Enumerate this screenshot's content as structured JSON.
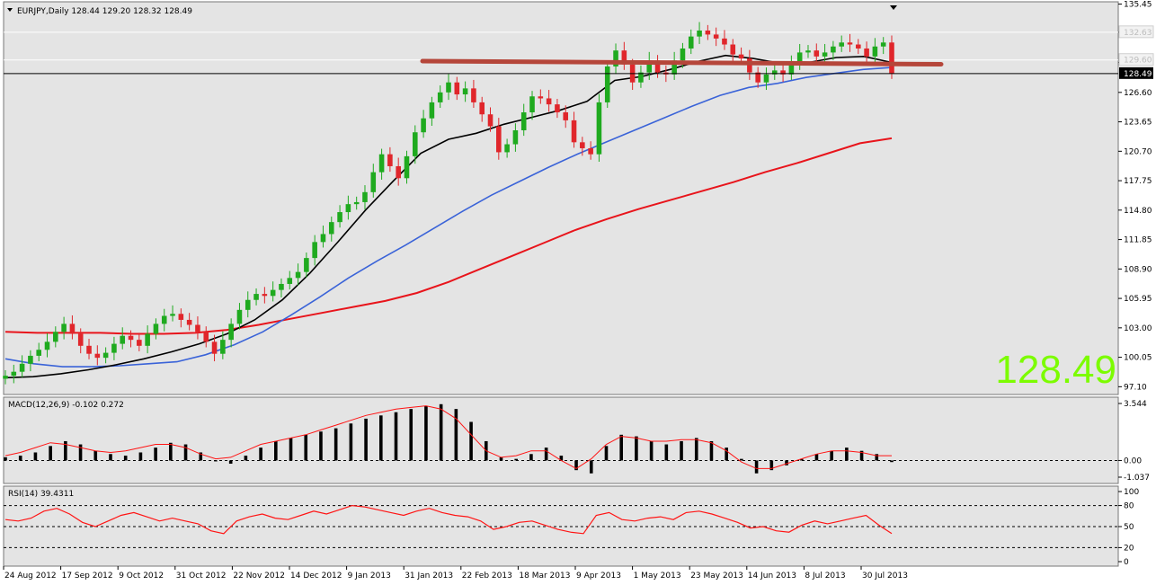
{
  "header": {
    "symbol": "EURJPY,Daily",
    "ohlc": "128.44 129.20 128.32 128.49"
  },
  "big_price": "128.49",
  "price_marker": "128.49",
  "price_tag_2": "132.63",
  "price_tag_3": "129.60",
  "macd": {
    "label": "MACD(12,26,9) -0.102 0.272",
    "ticks": [
      "3.544",
      "0.00",
      "-1.037"
    ]
  },
  "rsi": {
    "label": "RSI(14) 39.4311",
    "ticks": [
      "100",
      "80",
      "50",
      "20",
      "0"
    ]
  },
  "colors": {
    "background": "#e4e4e4",
    "up_candle": "#1faa1f",
    "down_candle": "#e0262b",
    "ma_fast": "#000000",
    "ma_mid": "#3a63d8",
    "ma_slow": "#e8141b",
    "resistance": "#b5463a",
    "macd_signal": "#ff1414",
    "rsi_line": "#ff1414",
    "big_price": "#7cfc00"
  },
  "chart_data": [
    {
      "type": "candlestick",
      "price_axis_ticks": [
        "135.45",
        "132.63",
        "129.60",
        "126.60",
        "123.65",
        "120.70",
        "117.75",
        "114.80",
        "111.85",
        "108.90",
        "105.95",
        "103.00",
        "100.05",
        "97.10"
      ],
      "x_tick_labels": [
        "24 Aug 2012",
        "17 Sep 2012",
        "9 Oct 2012",
        "31 Oct 2012",
        "22 Nov 2012",
        "14 Dec 2012",
        "9 Jan 2013",
        "31 Jan 2013",
        "22 Feb 2013",
        "18 Mar 2013",
        "9 Apr 2013",
        "1 May 2013",
        "23 May 2013",
        "14 Jun 2013",
        "8 Jul 2013",
        "30 Jul 2013"
      ],
      "ylim": [
        96.5,
        135.5
      ],
      "closes": [
        98.2,
        98.6,
        99.4,
        100.2,
        100.8,
        101.6,
        102.6,
        103.4,
        102.4,
        101.2,
        100.4,
        100.0,
        100.5,
        101.4,
        102.2,
        101.8,
        101.2,
        102.4,
        103.4,
        104.2,
        104.4,
        103.8,
        103.3,
        102.6,
        101.6,
        100.4,
        101.8,
        103.4,
        104.8,
        105.8,
        106.4,
        106.2,
        106.8,
        107.4,
        108.0,
        108.6,
        110.0,
        111.6,
        112.4,
        113.6,
        114.6,
        115.4,
        115.6,
        116.6,
        118.6,
        120.4,
        119.2,
        118.0,
        120.2,
        122.6,
        124.0,
        125.6,
        126.6,
        127.6,
        126.4,
        127.0,
        125.6,
        124.4,
        123.2,
        120.6,
        121.4,
        122.8,
        124.6,
        126.2,
        126.0,
        125.4,
        124.6,
        123.8,
        121.6,
        121.0,
        120.4,
        125.6,
        129.2,
        130.8,
        129.4,
        127.6,
        128.6,
        129.8,
        128.6,
        128.4,
        129.8,
        131.0,
        132.2,
        132.8,
        132.4,
        132.0,
        131.4,
        130.4,
        130.0,
        128.6,
        127.6,
        128.4,
        128.8,
        128.4,
        129.6,
        130.6,
        130.8,
        130.2,
        130.6,
        131.2,
        131.6,
        131.4,
        131.0,
        130.2,
        131.2,
        131.6,
        128.49
      ],
      "ma_fast": [
        98.0,
        98.1,
        98.4,
        98.8,
        99.3,
        99.9,
        100.6,
        101.4,
        102.4,
        103.8,
        105.8,
        108.5,
        111.6,
        114.8,
        117.7,
        120.5,
        121.9,
        122.5,
        123.4,
        124.1,
        124.8,
        125.7,
        127.8,
        128.2,
        128.9,
        129.7,
        130.3,
        130.0,
        129.5,
        129.6,
        130.1,
        130.2,
        129.6
      ],
      "ma_mid": [
        99.9,
        99.4,
        99.1,
        99.1,
        99.2,
        99.4,
        99.6,
        100.3,
        101.3,
        102.6,
        104.3,
        106.1,
        108.0,
        109.7,
        111.3,
        113.0,
        114.7,
        116.3,
        117.7,
        119.1,
        120.4,
        121.6,
        122.8,
        124.0,
        125.2,
        126.3,
        127.1,
        127.5,
        128.1,
        128.5,
        128.9,
        129.1
      ],
      "ma_slow": [
        102.6,
        102.5,
        102.5,
        102.5,
        102.4,
        102.4,
        102.5,
        102.8,
        103.3,
        103.9,
        104.5,
        105.1,
        105.7,
        106.5,
        107.6,
        108.9,
        110.2,
        111.5,
        112.8,
        113.9,
        114.9,
        115.8,
        116.7,
        117.6,
        118.6,
        119.5,
        120.5,
        121.5,
        122.0
      ],
      "resistance_level": 129.6,
      "last_price": 128.49
    },
    {
      "type": "bar",
      "name": "MACD(12,26,9)",
      "ylim": [
        -1.037,
        3.544
      ],
      "values": [
        0.2,
        0.3,
        0.5,
        0.9,
        1.2,
        1.0,
        0.6,
        0.4,
        0.3,
        0.5,
        0.8,
        1.1,
        1.0,
        0.5,
        0.0,
        -0.2,
        0.3,
        0.8,
        1.2,
        1.4,
        1.6,
        1.8,
        2.0,
        2.3,
        2.6,
        2.8,
        3.0,
        3.2,
        3.4,
        3.5,
        3.2,
        2.4,
        1.2,
        0.2,
        0.1,
        0.4,
        0.8,
        0.3,
        -0.6,
        -0.8,
        0.9,
        1.6,
        1.5,
        1.2,
        1.0,
        1.2,
        1.4,
        1.2,
        0.8,
        0.1,
        -0.8,
        -0.6,
        -0.3,
        0.1,
        0.4,
        0.6,
        0.8,
        0.6,
        0.4,
        -0.1
      ],
      "signal": [
        0.3,
        0.5,
        0.8,
        1.1,
        1.0,
        0.8,
        0.6,
        0.5,
        0.6,
        0.8,
        1.0,
        1.0,
        0.8,
        0.4,
        0.1,
        0.2,
        0.6,
        1.0,
        1.2,
        1.4,
        1.6,
        1.9,
        2.2,
        2.5,
        2.8,
        3.0,
        3.2,
        3.3,
        3.4,
        3.2,
        2.6,
        1.6,
        0.6,
        0.2,
        0.3,
        0.6,
        0.6,
        0.0,
        -0.5,
        0.1,
        1.0,
        1.5,
        1.4,
        1.2,
        1.2,
        1.3,
        1.3,
        1.1,
        0.6,
        -0.1,
        -0.5,
        -0.5,
        -0.2,
        0.1,
        0.4,
        0.6,
        0.6,
        0.5,
        0.3,
        0.3
      ]
    },
    {
      "type": "line",
      "name": "RSI(14)",
      "ylim": [
        0,
        100
      ],
      "levels": [
        80,
        50,
        20
      ],
      "values": [
        60,
        58,
        62,
        72,
        76,
        68,
        56,
        50,
        58,
        66,
        70,
        64,
        58,
        62,
        58,
        54,
        44,
        40,
        58,
        64,
        68,
        62,
        60,
        66,
        72,
        68,
        74,
        80,
        78,
        74,
        70,
        66,
        72,
        76,
        70,
        66,
        64,
        58,
        46,
        50,
        56,
        58,
        52,
        46,
        42,
        40,
        66,
        70,
        60,
        58,
        62,
        64,
        60,
        70,
        72,
        68,
        62,
        56,
        48,
        50,
        44,
        42,
        52,
        58,
        54,
        58,
        62,
        66,
        52,
        40
      ]
    }
  ]
}
